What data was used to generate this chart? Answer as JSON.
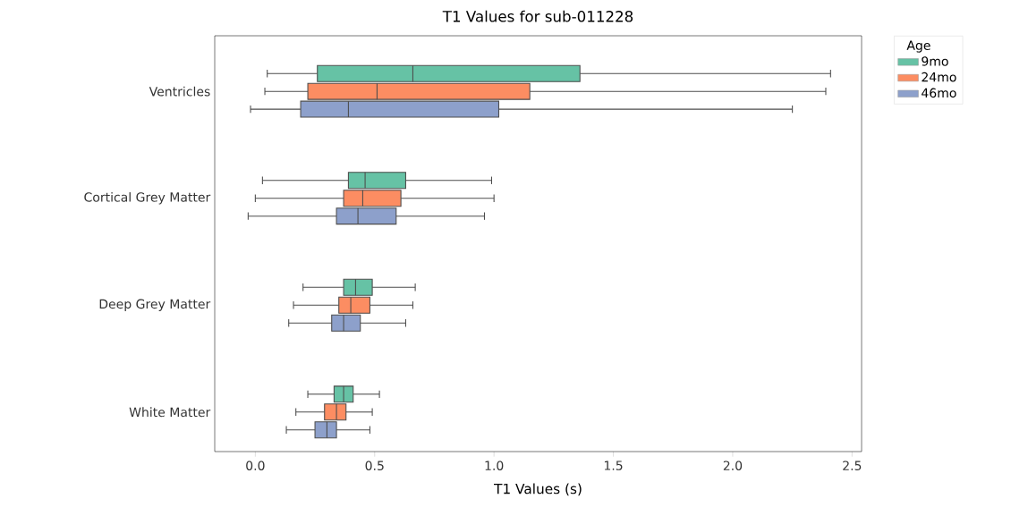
{
  "chart_data": {
    "type": "box",
    "orientation": "horizontal",
    "title": "T1 Values for sub-011228",
    "xlabel": "T1 Values (s)",
    "legend_title": "Age",
    "legend": "top right",
    "categories": [
      "Ventricles",
      "Cortical Grey Matter",
      "Deep Grey Matter",
      "White Matter"
    ],
    "xlim": [
      -0.17,
      2.54
    ],
    "xticks": [
      {
        "value": 0,
        "label": "0.0"
      },
      {
        "value": 0.5,
        "label": "0.5"
      },
      {
        "value": 1,
        "label": "1.0"
      },
      1.5,
      {
        "value": 2,
        "label": "2.0"
      },
      2.5
    ],
    "series": [
      {
        "name": "9mo",
        "color": "#66c2a5",
        "boxes": [
          {
            "low": 0.05,
            "q1": 0.26,
            "median": 0.66,
            "q3": 1.36,
            "high": 2.41
          },
          {
            "low": 0.03,
            "q1": 0.39,
            "median": 0.46,
            "q3": 0.63,
            "high": 0.99
          },
          {
            "low": 0.2,
            "q1": 0.37,
            "median": 0.42,
            "q3": 0.49,
            "high": 0.67
          },
          {
            "low": 0.22,
            "q1": 0.33,
            "median": 0.37,
            "q3": 0.41,
            "high": 0.52
          }
        ]
      },
      {
        "name": "24mo",
        "color": "#fc8d62",
        "boxes": [
          {
            "low": 0.04,
            "q1": 0.22,
            "median": 0.51,
            "q3": 1.15,
            "high": 2.39
          },
          {
            "low": 0.0,
            "q1": 0.37,
            "median": 0.45,
            "q3": 0.61,
            "high": 1.0
          },
          {
            "low": 0.16,
            "q1": 0.35,
            "median": 0.4,
            "q3": 0.48,
            "high": 0.66
          },
          {
            "low": 0.17,
            "q1": 0.29,
            "median": 0.34,
            "q3": 0.38,
            "high": 0.49
          }
        ]
      },
      {
        "name": "46mo",
        "color": "#8da0cb",
        "boxes": [
          {
            "low": -0.02,
            "q1": 0.19,
            "median": 0.39,
            "q3": 1.02,
            "high": 2.25
          },
          {
            "low": -0.03,
            "q1": 0.34,
            "median": 0.43,
            "q3": 0.59,
            "high": 0.96
          },
          {
            "low": 0.14,
            "q1": 0.32,
            "median": 0.37,
            "q3": 0.44,
            "high": 0.63
          },
          {
            "low": 0.13,
            "q1": 0.25,
            "median": 0.3,
            "q3": 0.34,
            "high": 0.48
          }
        ]
      }
    ]
  }
}
